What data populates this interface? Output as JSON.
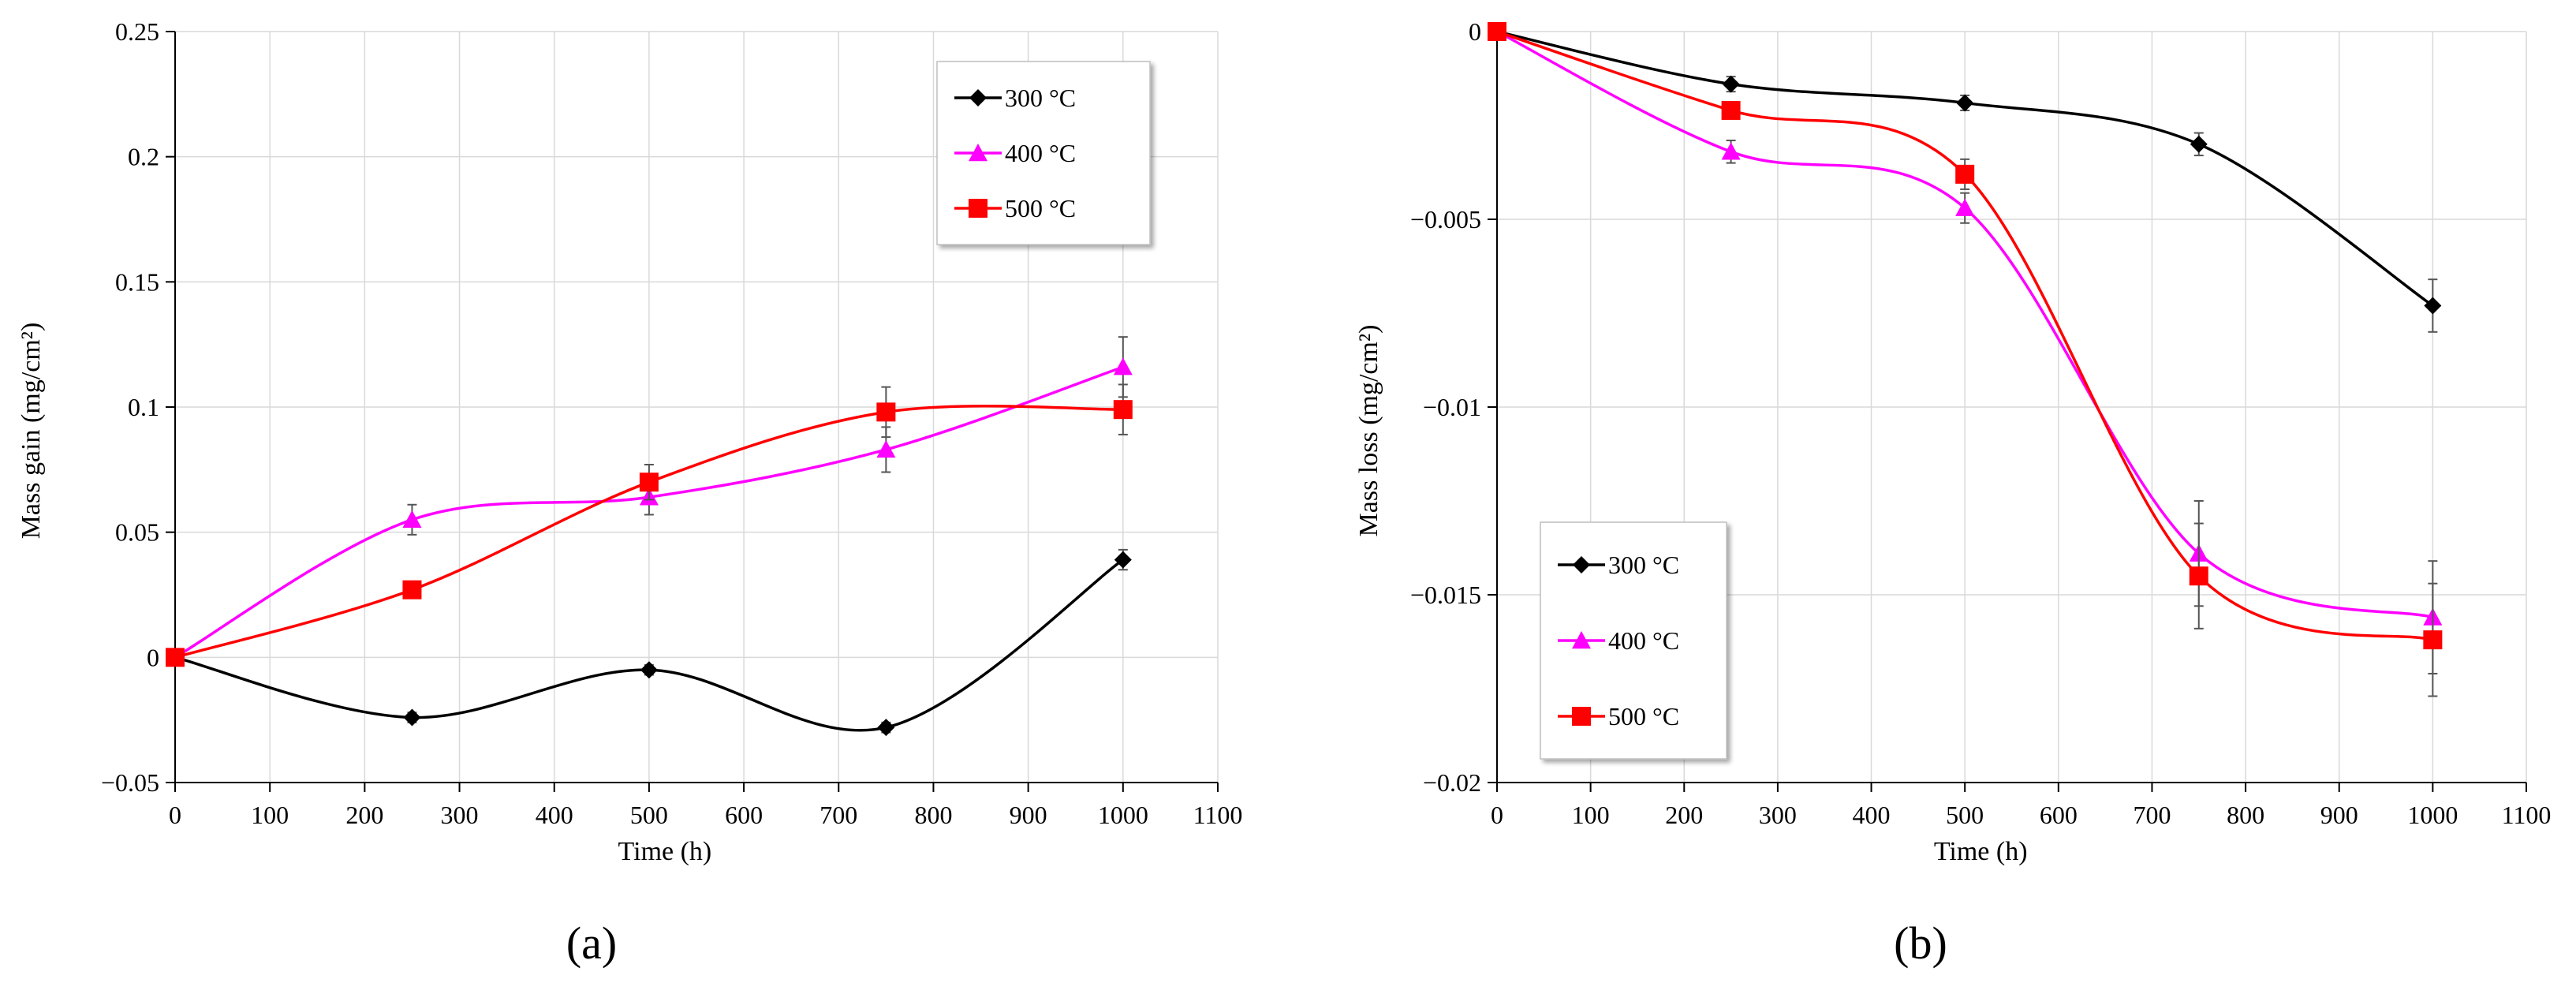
{
  "chart_data": [
    {
      "type": "line",
      "panel_label": "(a)",
      "xlabel": "Time (h)",
      "ylabel": "Mass gain (mg/cm²)",
      "xlim": [
        0,
        1100
      ],
      "ylim": [
        -0.05,
        0.25
      ],
      "xticks": [
        0,
        100,
        200,
        300,
        400,
        500,
        600,
        700,
        800,
        900,
        1000,
        1100
      ],
      "xtick_labels": [
        "0",
        "100",
        "200",
        "300",
        "400",
        "500",
        "600",
        "700",
        "800",
        "900",
        "1000",
        "1100"
      ],
      "yticks": [
        -0.05,
        0,
        0.05,
        0.1,
        0.15,
        0.2,
        0.25
      ],
      "ytick_labels": [
        "−0.05",
        "0",
        "0.05",
        "0.1",
        "0.15",
        "0.2",
        "0.25"
      ],
      "grid": true,
      "legend_position": "top-right",
      "x": [
        0,
        250,
        500,
        750,
        1000
      ],
      "series": [
        {
          "name": "300 °C",
          "color": "#000000",
          "marker": "diamond",
          "values": [
            0,
            -0.024,
            -0.005,
            -0.028,
            0.039
          ],
          "errors": [
            0,
            0.002,
            0.002,
            0.002,
            0.004
          ]
        },
        {
          "name": "400 °C",
          "color": "#ff00ff",
          "marker": "triangle",
          "values": [
            0,
            0.055,
            0.064,
            0.083,
            0.116
          ],
          "errors": [
            0,
            0.006,
            0.007,
            0.009,
            0.012
          ]
        },
        {
          "name": "500 °C",
          "color": "#ff0000",
          "marker": "square",
          "values": [
            0,
            0.027,
            0.07,
            0.098,
            0.099
          ],
          "errors": [
            0,
            0.002,
            0.007,
            0.01,
            0.01
          ]
        }
      ]
    },
    {
      "type": "line",
      "panel_label": "(b)",
      "xlabel": "Time (h)",
      "ylabel": "Mass loss (mg/cm²)",
      "xlim": [
        0,
        1100
      ],
      "ylim": [
        -0.02,
        0
      ],
      "xticks": [
        0,
        100,
        200,
        300,
        400,
        500,
        600,
        700,
        800,
        900,
        1000,
        1100
      ],
      "xtick_labels": [
        "0",
        "100",
        "200",
        "300",
        "400",
        "500",
        "600",
        "700",
        "800",
        "900",
        "1000",
        "1100"
      ],
      "yticks": [
        -0.02,
        -0.015,
        -0.01,
        -0.005,
        0
      ],
      "ytick_labels": [
        "−0.02",
        "−0.015",
        "−0.01",
        "−0.005",
        "0"
      ],
      "grid": true,
      "legend_position": "bottom-left",
      "x": [
        0,
        250,
        500,
        750,
        1000
      ],
      "series": [
        {
          "name": "300 °C",
          "color": "#000000",
          "marker": "diamond",
          "values": [
            0,
            -0.0014,
            -0.0019,
            -0.003,
            -0.0073
          ],
          "errors": [
            0,
            0.0002,
            0.0002,
            0.0003,
            0.0007
          ]
        },
        {
          "name": "400 °C",
          "color": "#ff00ff",
          "marker": "triangle",
          "values": [
            0,
            -0.0032,
            -0.0047,
            -0.0139,
            -0.0156
          ],
          "errors": [
            0,
            0.0003,
            0.0004,
            0.0014,
            0.0015
          ]
        },
        {
          "name": "500 °C",
          "color": "#ff0000",
          "marker": "square",
          "values": [
            0,
            -0.0021,
            -0.0038,
            -0.0145,
            -0.0162
          ],
          "errors": [
            0,
            0.0002,
            0.0004,
            0.0014,
            0.0015
          ]
        }
      ]
    }
  ]
}
